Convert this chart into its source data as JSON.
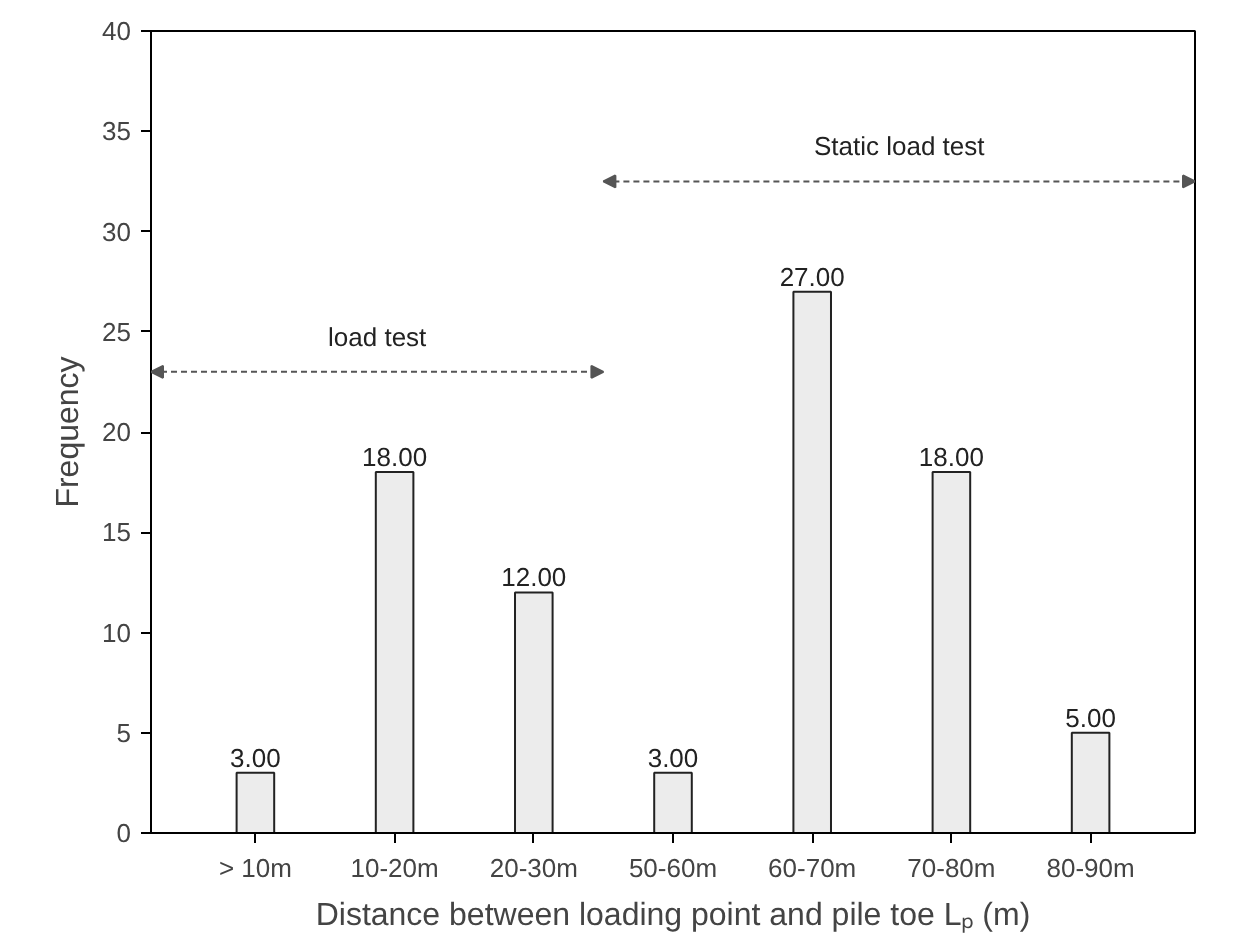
{
  "chart_data": {
    "type": "bar",
    "xlabel": "Distance between loading point and pile toe Lₚ (m)",
    "ylabel": "Frequency",
    "categories": [
      "> 10m",
      "10-20m",
      "20-30m",
      "50-60m",
      "60-70m",
      "70-80m",
      "80-90m"
    ],
    "values": [
      3,
      18,
      12,
      3,
      27,
      18,
      5
    ],
    "color": "#ececec",
    "value_labels": [
      "3.00",
      "18.00",
      "12.00",
      "3.00",
      "27.00",
      "18.00",
      "5.00"
    ],
    "ylim": [
      0,
      40
    ],
    "yticks": [
      0,
      5,
      10,
      15,
      20,
      25,
      30,
      35,
      40
    ],
    "grid": false,
    "annotations": [
      "load test",
      "Static load test"
    ]
  }
}
